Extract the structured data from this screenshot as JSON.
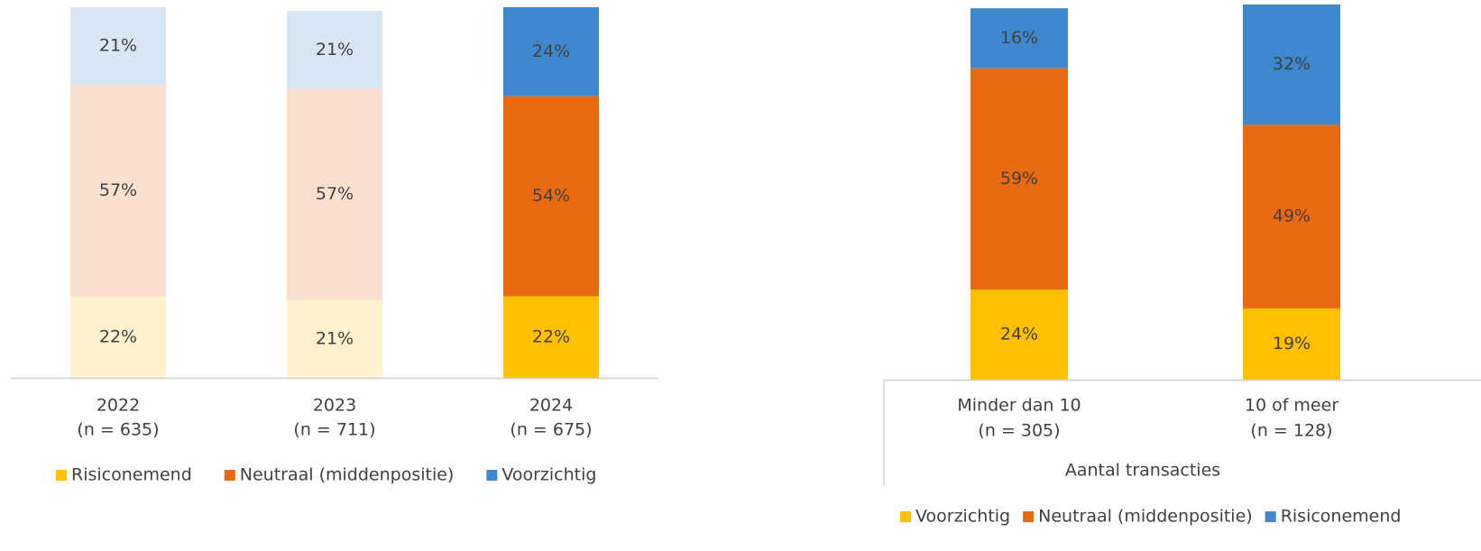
{
  "chart_data": [
    {
      "type": "bar",
      "stacked": true,
      "categories": [
        [
          "2022",
          "(n = 635)"
        ],
        [
          "2023",
          "(n = 711)"
        ],
        [
          "2024",
          "(n = 675)"
        ]
      ],
      "ylim": [
        0,
        100
      ],
      "series": [
        {
          "name": "Risiconemend",
          "color": "#FFC000",
          "colors": [
            "#FFF2CC",
            "#FFF2CC",
            "#FFC000"
          ],
          "values": [
            22,
            21,
            22
          ],
          "value_labels": [
            "22%",
            "21%",
            "22%"
          ]
        },
        {
          "name": "Neutraal (middenpositie)",
          "color": "#E96A10",
          "colors": [
            "#FBE0D0",
            "#FBE0D0",
            "#E96A10"
          ],
          "values": [
            57,
            57,
            54
          ],
          "value_labels": [
            "57%",
            "57%",
            "54%"
          ]
        },
        {
          "name": "Voorzichtig",
          "color": "#3E88D0",
          "colors": [
            "#D9E7F5",
            "#D9E7F5",
            "#3E88D0"
          ],
          "values": [
            21,
            21,
            24
          ],
          "value_labels": [
            "21%",
            "21%",
            "24%"
          ]
        }
      ]
    },
    {
      "type": "bar",
      "stacked": true,
      "x_label": "Aantal transacties",
      "categories": [
        [
          "Minder dan 10",
          "(n = 305)"
        ],
        [
          "10 of meer",
          "(n = 128)"
        ]
      ],
      "ylim": [
        0,
        100
      ],
      "series": [
        {
          "name": "Voorzichtig",
          "color": "#FFC000",
          "values": [
            24,
            19
          ],
          "value_labels": [
            "24%",
            "19%"
          ]
        },
        {
          "name": "Neutraal (middenpositie)",
          "color": "#E96A10",
          "values": [
            59,
            49
          ],
          "value_labels": [
            "59%",
            "49%"
          ]
        },
        {
          "name": "Risiconemend",
          "color": "#3E88D0",
          "values": [
            16,
            32
          ],
          "value_labels": [
            "16%",
            "32%"
          ]
        }
      ]
    }
  ]
}
